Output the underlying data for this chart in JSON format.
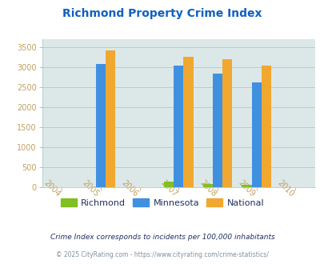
{
  "title": "Richmond Property Crime Index",
  "title_color": "#1060c0",
  "years": [
    2005,
    2007,
    2008,
    2009
  ],
  "richmond": [
    0,
    155,
    80,
    70
  ],
  "minnesota": [
    3080,
    3040,
    2850,
    2630
  ],
  "national": [
    3420,
    3260,
    3200,
    3040
  ],
  "richmond_color": "#80c020",
  "minnesota_color": "#4090e0",
  "national_color": "#f0a830",
  "bg_color": "#dce8e8",
  "xlim": [
    2003.5,
    2010.5
  ],
  "ylim": [
    0,
    3700
  ],
  "yticks": [
    0,
    500,
    1000,
    1500,
    2000,
    2500,
    3000,
    3500
  ],
  "xticks": [
    2004,
    2005,
    2006,
    2007,
    2008,
    2009,
    2010
  ],
  "bar_width": 0.25,
  "footnote1": "Crime Index corresponds to incidents per 100,000 inhabitants",
  "footnote2": "© 2025 CityRating.com - https://www.cityrating.com/crime-statistics/",
  "footnote1_color": "#203060",
  "footnote2_color": "#8090a0",
  "tick_color": "#c0a060",
  "grid_color": "#b0c8c8"
}
